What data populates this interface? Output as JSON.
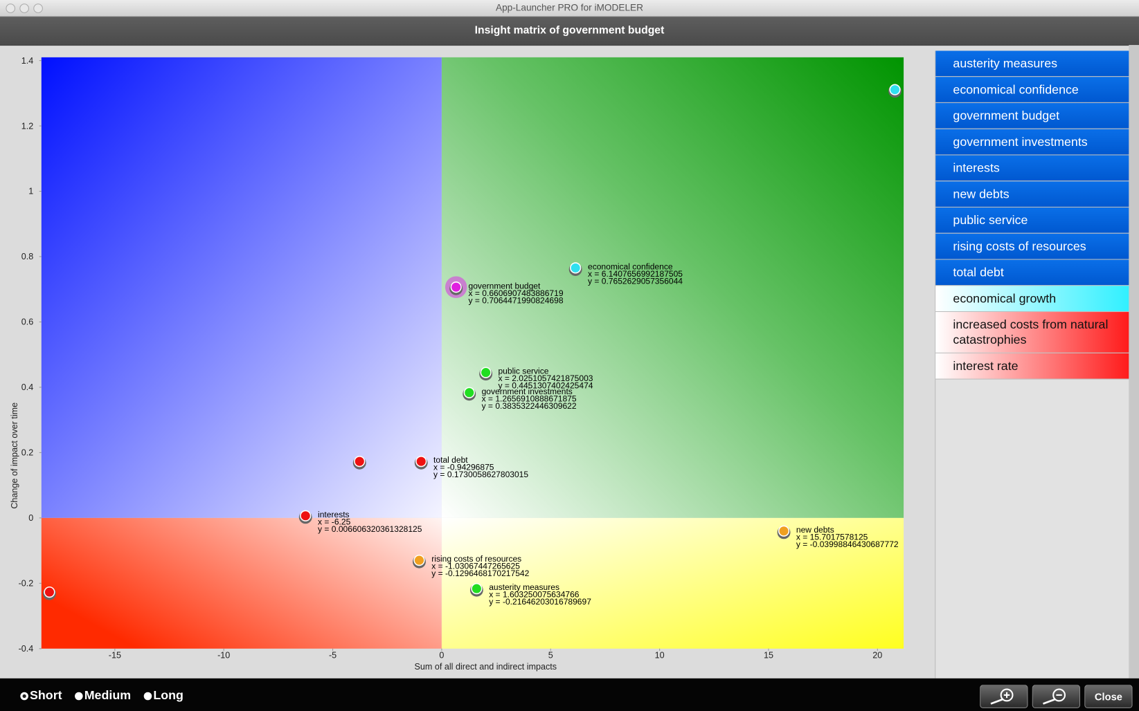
{
  "window_title": "App-Launcher PRO for iMODELER",
  "chart_data": {
    "type": "scatter",
    "title": "Insight matrix of government budget",
    "xlabel": "Sum of all direct and indirect impacts",
    "ylabel": "Change of impact over time",
    "xlim": [
      -18.37,
      21.2
    ],
    "ylim": [
      -0.4,
      1.41
    ],
    "xticks": [
      -15,
      -10,
      -5,
      0,
      5,
      10,
      15,
      20
    ],
    "yticks": [
      -0.4,
      -0.2,
      0.0,
      0.2,
      0.4,
      0.6,
      0.8,
      1.0,
      1.2,
      1.4
    ],
    "points": [
      {
        "name": "government budget",
        "x": 0.6606907483886719,
        "y": 0.7064471990824698,
        "x_label": "x = 0.6606907483886719",
        "y_label": "y = 0.7064471990824698",
        "color": "#e020e0",
        "selected": true
      },
      {
        "name": "economical confidence",
        "x": 6.1407656992187505,
        "y": 0.7652629057356044,
        "x_label": "x = 6.1407656992187505",
        "y_label": "y = 0.7652629057356044",
        "color": "#30e0f0"
      },
      {
        "name": "public service",
        "x": 2.0251057421875003,
        "y": 0.4451307402425474,
        "x_label": "x = 2.0251057421875003",
        "y_label": "y = 0.4451307402425474",
        "color": "#22dd22"
      },
      {
        "name": "government investments",
        "x": 1.2656910888671875,
        "y": 0.3835322446309622,
        "x_label": "x = 1.2656910888671875",
        "y_label": "y = 0.3835322446309622",
        "color": "#22dd22"
      },
      {
        "name": "total debt",
        "x": -0.94296875,
        "y": 0.1730058627803015,
        "x_label": "x = -0.94296875",
        "y_label": "y = 0.1730058627803015",
        "color": "#ee1111"
      },
      {
        "name": "interests",
        "x": -6.25,
        "y": 0.006606320361328125,
        "x_label": "x = -6.25",
        "y_label": "y = 0.006606320361328125",
        "color": "#ee1111"
      },
      {
        "name": "new debts",
        "x": 15.7017578125,
        "y": -0.03998846430687772,
        "x_label": "x = 15.7017578125",
        "y_label": "y = -0.03998846430687772",
        "color": "#f0a020"
      },
      {
        "name": "rising costs of resources",
        "x": -1.03067447265625,
        "y": -0.1296468170217542,
        "x_label": "x = -1.03067447265625",
        "y_label": "y = -0.1296468170217542",
        "color": "#f0a020"
      },
      {
        "name": "austerity measures",
        "x": 1.603250075634766,
        "y": -0.21646203016789697,
        "x_label": "x = 1.603250075634766",
        "y_label": "y = -0.21646203016789697",
        "color": "#22dd22"
      },
      {
        "name": null,
        "x": 20.8,
        "y": 1.311,
        "color": "#30e0f0"
      },
      {
        "name": null,
        "x": -3.77,
        "y": 0.173,
        "color": "#ee1111"
      },
      {
        "name": null,
        "x": -18.0,
        "y": -0.227,
        "color": "#ee1111"
      }
    ]
  },
  "side_list": [
    {
      "label": "austerity measures",
      "color": "#0a6fe8"
    },
    {
      "label": "economical confidence",
      "color": "#0a6fe8"
    },
    {
      "label": "government budget",
      "color": "#0a6fe8"
    },
    {
      "label": "government investments",
      "color": "#0a6fe8"
    },
    {
      "label": "interests",
      "color": "#0a6fe8"
    },
    {
      "label": "new debts",
      "color": "#0a6fe8"
    },
    {
      "label": "public service",
      "color": "#0a6fe8"
    },
    {
      "label": "rising costs of resources",
      "color": "#0a6fe8"
    },
    {
      "label": "total debt",
      "color": "#0a6fe8"
    },
    {
      "label": "economical growth",
      "color": "#30f0ff"
    },
    {
      "label": "increased costs from natural catastrophies",
      "color": "#ff1a1a"
    },
    {
      "label": "interest rate",
      "color": "#ff1a1a"
    }
  ],
  "duration_options": {
    "options": [
      "Short",
      "Medium",
      "Long"
    ],
    "selected": 0
  },
  "close_button": "Close"
}
